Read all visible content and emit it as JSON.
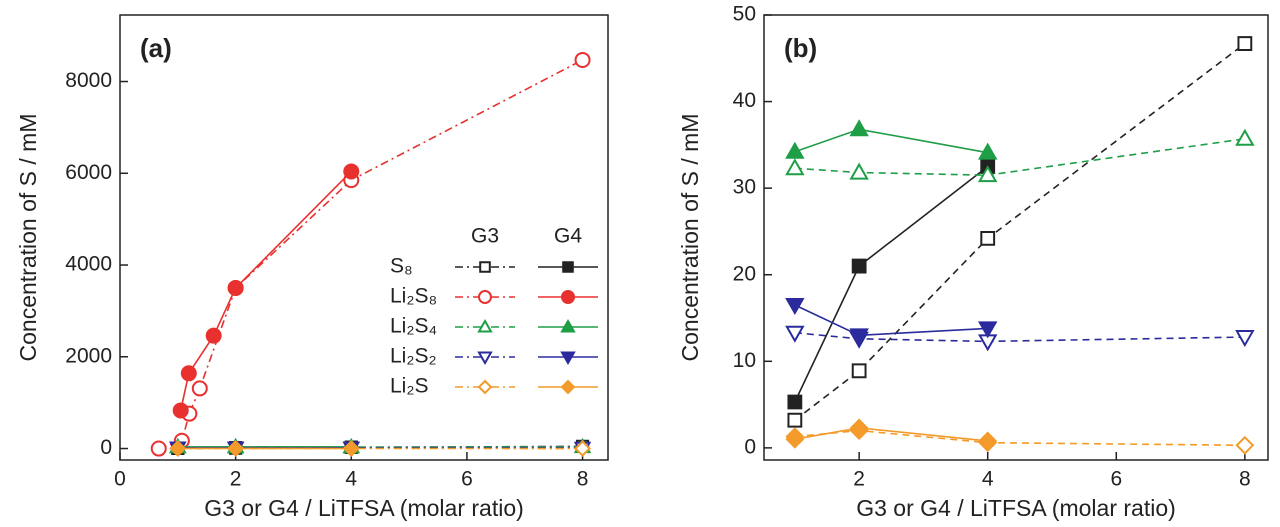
{
  "chart_data": [
    {
      "type": "line",
      "label": "(a)",
      "xlabel": "G3 or G4 / LiTFSA (molar ratio)",
      "ylabel": "Concentration of S / mM",
      "xlim": [
        0,
        8.44
      ],
      "ylim": [
        -250,
        9450
      ],
      "xticks": [
        0,
        2,
        4,
        6,
        8
      ],
      "yticks": [
        0,
        2000,
        4000,
        6000,
        8000
      ],
      "legend": "lower right",
      "series": [
        {
          "name": "S₈",
          "group": "G3",
          "color": "#222222",
          "marker": "square",
          "filled": false,
          "dash": "dashdot",
          "x": [
            1,
            2,
            4,
            8
          ],
          "values": [
            3.2,
            8.9,
            24.2,
            46.7
          ]
        },
        {
          "name": "S₈",
          "group": "G4",
          "color": "#222222",
          "marker": "square",
          "filled": true,
          "dash": "solid",
          "x": [
            1,
            2,
            4
          ],
          "values": [
            5.3,
            21.0,
            32.5
          ]
        },
        {
          "name": "Li₂S₈",
          "group": "G3",
          "color": "#e8302f",
          "marker": "circle",
          "filled": false,
          "dash": "dashdot",
          "x": [
            0.67,
            1.07,
            1.2,
            1.38,
            2,
            4,
            8
          ],
          "values": [
            0,
            170,
            760,
            1310,
            3500,
            5850,
            8470
          ]
        },
        {
          "name": "Li₂S₈",
          "group": "G4",
          "color": "#e8302f",
          "marker": "circle",
          "filled": true,
          "dash": "solid",
          "x": [
            1.05,
            1.19,
            1.62,
            2,
            4
          ],
          "values": [
            830,
            1640,
            2460,
            3500,
            6040
          ]
        },
        {
          "name": "Li₂S₄",
          "group": "G3",
          "color": "#1e9e47",
          "marker": "triangle-up",
          "filled": false,
          "dash": "dashdot",
          "x": [
            1,
            2,
            4,
            8
          ],
          "values": [
            32.3,
            31.8,
            31.5,
            35.7
          ]
        },
        {
          "name": "Li₂S₄",
          "group": "G4",
          "color": "#1e9e47",
          "marker": "triangle-up",
          "filled": true,
          "dash": "solid",
          "x": [
            1,
            2,
            4
          ],
          "values": [
            34.2,
            36.8,
            34.1
          ]
        },
        {
          "name": "Li₂S₂",
          "group": "G3",
          "color": "#2b2b9e",
          "marker": "triangle-down",
          "filled": false,
          "dash": "dashdot",
          "x": [
            1,
            2,
            4,
            8
          ],
          "values": [
            13.3,
            12.6,
            12.3,
            12.8
          ]
        },
        {
          "name": "Li₂S₂",
          "group": "G4",
          "color": "#2b2b9e",
          "marker": "triangle-down",
          "filled": true,
          "dash": "solid",
          "x": [
            1,
            2,
            4
          ],
          "values": [
            16.5,
            13.0,
            13.8
          ]
        },
        {
          "name": "Li₂S",
          "group": "G3",
          "color": "#f39a2a",
          "marker": "diamond",
          "filled": false,
          "dash": "dashdot",
          "x": [
            1,
            2,
            4,
            8
          ],
          "values": [
            1.3,
            2.0,
            0.6,
            0.3
          ]
        },
        {
          "name": "Li₂S",
          "group": "G4",
          "color": "#f39a2a",
          "marker": "diamond",
          "filled": true,
          "dash": "solid",
          "x": [
            1,
            2,
            4
          ],
          "values": [
            1.0,
            2.3,
            0.8
          ]
        }
      ]
    },
    {
      "type": "line",
      "label": "(b)",
      "xlabel": "G3 or G4 / LiTFSA (molar ratio)",
      "ylabel": "Concentration of S / mM",
      "xlim": [
        0.52,
        8.36
      ],
      "ylim": [
        -1.4,
        50
      ],
      "xticks": [
        2,
        4,
        6,
        8
      ],
      "yticks": [
        0,
        10,
        20,
        30,
        40,
        50
      ],
      "series": [
        {
          "color": "#222222",
          "marker": "square",
          "filled": false,
          "dash": "dashed",
          "x": [
            1,
            2,
            4,
            8
          ],
          "values": [
            3.2,
            8.9,
            24.2,
            46.7
          ]
        },
        {
          "color": "#222222",
          "marker": "square",
          "filled": true,
          "dash": "solid",
          "x": [
            1,
            2,
            4
          ],
          "values": [
            5.3,
            21.0,
            32.5
          ]
        },
        {
          "color": "#1e9e47",
          "marker": "triangle-up",
          "filled": false,
          "dash": "dashed",
          "x": [
            1,
            2,
            4,
            8
          ],
          "values": [
            32.3,
            31.8,
            31.5,
            35.7
          ]
        },
        {
          "color": "#1e9e47",
          "marker": "triangle-up",
          "filled": true,
          "dash": "solid",
          "x": [
            1,
            2,
            4
          ],
          "values": [
            34.2,
            36.8,
            34.1
          ]
        },
        {
          "color": "#2b2b9e",
          "marker": "triangle-down",
          "filled": false,
          "dash": "dashed",
          "x": [
            1,
            2,
            4,
            8
          ],
          "values": [
            13.3,
            12.6,
            12.3,
            12.8
          ]
        },
        {
          "color": "#2b2b9e",
          "marker": "triangle-down",
          "filled": true,
          "dash": "solid",
          "x": [
            1,
            2,
            4
          ],
          "values": [
            16.5,
            13.0,
            13.8
          ]
        },
        {
          "color": "#f39a2a",
          "marker": "diamond",
          "filled": false,
          "dash": "dashed",
          "x": [
            1,
            2,
            4,
            8
          ],
          "values": [
            1.3,
            2.0,
            0.6,
            0.3
          ]
        },
        {
          "color": "#f39a2a",
          "marker": "diamond",
          "filled": true,
          "dash": "solid",
          "x": [
            1,
            2,
            4
          ],
          "values": [
            1.0,
            2.3,
            0.8
          ]
        }
      ]
    }
  ]
}
